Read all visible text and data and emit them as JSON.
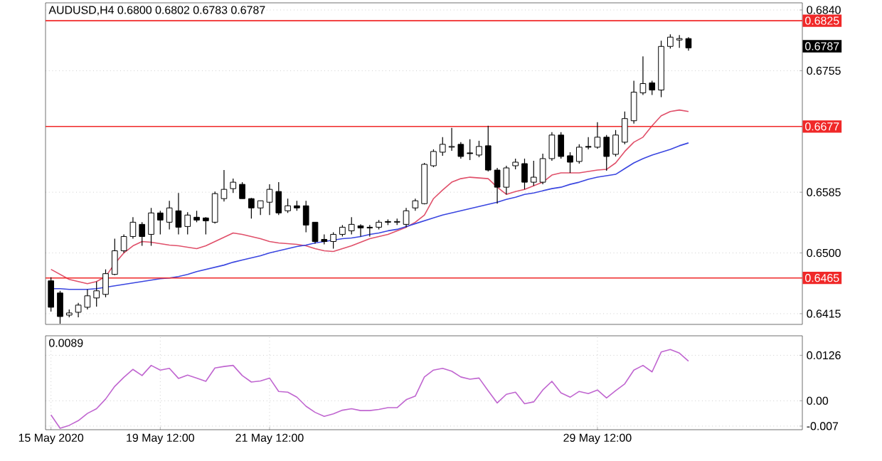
{
  "chart_data": [
    {
      "type": "candlestick",
      "title": "AUDUSD,H4  0.6800 0.6802 0.6783 0.6787",
      "categories": [
        null,
        null,
        null,
        null,
        null,
        null,
        null,
        null,
        null,
        null,
        null,
        null,
        null,
        null,
        null,
        null,
        null,
        null,
        null,
        null,
        null,
        null,
        null,
        null,
        null,
        null,
        null,
        null,
        null,
        null,
        null,
        null,
        null,
        null,
        null,
        null,
        null,
        null,
        null,
        null,
        null,
        null,
        null,
        null,
        null,
        null,
        null,
        null,
        null,
        null,
        null,
        null,
        null,
        null,
        null,
        null,
        null,
        null,
        null,
        null,
        null,
        null,
        null,
        null,
        null,
        null,
        null,
        null,
        null,
        null,
        null
      ],
      "ohlc": [
        [
          0.6461,
          0.6466,
          0.6418,
          0.6424
        ],
        [
          0.6444,
          0.6447,
          0.6401,
          0.6411
        ],
        [
          0.6413,
          0.6421,
          0.641,
          0.6416
        ],
        [
          0.6417,
          0.643,
          0.641,
          0.6427
        ],
        [
          0.6424,
          0.6449,
          0.6421,
          0.644
        ],
        [
          0.6437,
          0.646,
          0.6425,
          0.6447
        ],
        [
          0.6442,
          0.6477,
          0.6438,
          0.6471
        ],
        [
          0.647,
          0.652,
          0.6469,
          0.6503
        ],
        [
          0.6503,
          0.6526,
          0.65,
          0.6523
        ],
        [
          0.6523,
          0.655,
          0.652,
          0.6543
        ],
        [
          0.654,
          0.6543,
          0.651,
          0.6523
        ],
        [
          0.6526,
          0.6563,
          0.651,
          0.6556
        ],
        [
          0.6556,
          0.6559,
          0.6526,
          0.6546
        ],
        [
          0.6543,
          0.6573,
          0.6533,
          0.6563
        ],
        [
          0.6559,
          0.6584,
          0.6526,
          0.6536
        ],
        [
          0.6537,
          0.6557,
          0.6526,
          0.6553
        ],
        [
          0.655,
          0.6559,
          0.6543,
          0.6546
        ],
        [
          0.6549,
          0.655,
          0.6526,
          0.6545
        ],
        [
          0.6543,
          0.6586,
          0.6541,
          0.6583
        ],
        [
          0.6576,
          0.6616,
          0.6572,
          0.6589
        ],
        [
          0.659,
          0.6604,
          0.6584,
          0.6599
        ],
        [
          0.6596,
          0.6599,
          0.6576,
          0.6576
        ],
        [
          0.6576,
          0.6577,
          0.6548,
          0.6563
        ],
        [
          0.6563,
          0.6573,
          0.6553,
          0.6573
        ],
        [
          0.6571,
          0.6596,
          0.6553,
          0.6589
        ],
        [
          0.6586,
          0.6599,
          0.6553,
          0.6556
        ],
        [
          0.6559,
          0.6576,
          0.6556,
          0.6566
        ],
        [
          0.6566,
          0.6573,
          0.6559,
          0.6563
        ],
        [
          0.6566,
          0.6573,
          0.6529,
          0.6539
        ],
        [
          0.6543,
          0.6543,
          0.6513,
          0.6516
        ],
        [
          0.6519,
          0.6526,
          0.6512,
          0.6516
        ],
        [
          0.6516,
          0.6529,
          0.6506,
          0.6526
        ],
        [
          0.6526,
          0.6539,
          0.6523,
          0.6536
        ],
        [
          0.6531,
          0.655,
          0.6526,
          0.654
        ],
        [
          0.6538,
          0.654,
          0.6523,
          0.6535
        ],
        [
          0.6536,
          0.6539,
          0.6523,
          0.6535
        ],
        [
          0.6536,
          0.6546,
          0.6533,
          0.6543
        ],
        [
          0.6544,
          0.6547,
          0.6539,
          0.6543
        ],
        [
          0.6543,
          0.6548,
          0.6539,
          0.6544
        ],
        [
          0.654,
          0.6563,
          0.6536,
          0.6559
        ],
        [
          0.6563,
          0.6576,
          0.6559,
          0.6573
        ],
        [
          0.6569,
          0.6626,
          0.6568,
          0.6624
        ],
        [
          0.6622,
          0.6645,
          0.662,
          0.6642
        ],
        [
          0.6641,
          0.6662,
          0.6636,
          0.6652
        ],
        [
          0.6648,
          0.6675,
          0.6643,
          0.6649
        ],
        [
          0.6652,
          0.6655,
          0.6632,
          0.6635
        ],
        [
          0.664,
          0.6659,
          0.663,
          0.6639
        ],
        [
          0.6637,
          0.6657,
          0.6634,
          0.6649
        ],
        [
          0.665,
          0.6678,
          0.6614,
          0.6616
        ],
        [
          0.6616,
          0.6619,
          0.6569,
          0.6592
        ],
        [
          0.6592,
          0.6622,
          0.6582,
          0.6619
        ],
        [
          0.6622,
          0.6632,
          0.6617,
          0.6627
        ],
        [
          0.6625,
          0.6632,
          0.6589,
          0.6599
        ],
        [
          0.6599,
          0.6629,
          0.6594,
          0.6606
        ],
        [
          0.6599,
          0.6639,
          0.6596,
          0.6632
        ],
        [
          0.6632,
          0.6669,
          0.6629,
          0.6665
        ],
        [
          0.6665,
          0.6669,
          0.6632,
          0.6635
        ],
        [
          0.6636,
          0.6641,
          0.6612,
          0.6627
        ],
        [
          0.6628,
          0.6652,
          0.6625,
          0.6648
        ],
        [
          0.6649,
          0.6662,
          0.6645,
          0.6648
        ],
        [
          0.6648,
          0.6683,
          0.6646,
          0.6662
        ],
        [
          0.6662,
          0.6665,
          0.6615,
          0.6635
        ],
        [
          0.6638,
          0.6672,
          0.6635,
          0.6665
        ],
        [
          0.6655,
          0.6698,
          0.6652,
          0.6688
        ],
        [
          0.6685,
          0.6741,
          0.6681,
          0.6725
        ],
        [
          0.6724,
          0.6775,
          0.6721,
          0.6737
        ],
        [
          0.6738,
          0.6741,
          0.6721,
          0.6728
        ],
        [
          0.6728,
          0.6797,
          0.6718,
          0.6789
        ],
        [
          0.6789,
          0.6806,
          0.6786,
          0.6802
        ],
        [
          0.6798,
          0.6805,
          0.6787,
          0.68
        ],
        [
          0.68,
          0.6802,
          0.6783,
          0.6787
        ]
      ],
      "series": [
        {
          "type": "line",
          "color": "#e0506a",
          "values": [
            0.6477,
            0.647,
            0.6463,
            0.646,
            0.6457,
            0.646,
            0.6467,
            0.6485,
            0.65,
            0.651,
            0.6516,
            0.6515,
            0.6513,
            0.6511,
            0.651,
            0.6508,
            0.6506,
            0.651,
            0.6516,
            0.6522,
            0.6528,
            0.6526,
            0.6523,
            0.652,
            0.6516,
            0.6514,
            0.6513,
            0.6512,
            0.651,
            0.6506,
            0.6503,
            0.6502,
            0.6506,
            0.651,
            0.6515,
            0.652,
            0.6523,
            0.6526,
            0.6531,
            0.6536,
            0.6543,
            0.6553,
            0.6576,
            0.6588,
            0.6599,
            0.6604,
            0.6606,
            0.6605,
            0.6604,
            0.6592,
            0.6582,
            0.6586,
            0.6589,
            0.6594,
            0.6599,
            0.6609,
            0.6612,
            0.6612,
            0.6612,
            0.6614,
            0.6616,
            0.6617,
            0.6626,
            0.6642,
            0.6655,
            0.6662,
            0.6678,
            0.6692,
            0.6698,
            0.67,
            0.6698
          ]
        },
        {
          "type": "line",
          "color": "#3a46e0",
          "values": [
            0.645,
            0.645,
            0.6449,
            0.6449,
            0.6449,
            0.645,
            0.6452,
            0.6454,
            0.6456,
            0.6458,
            0.646,
            0.6462,
            0.6464,
            0.6465,
            0.6467,
            0.647,
            0.6474,
            0.6477,
            0.648,
            0.6483,
            0.6487,
            0.649,
            0.6493,
            0.6496,
            0.65,
            0.6503,
            0.6506,
            0.6509,
            0.6511,
            0.6514,
            0.6516,
            0.6518,
            0.652,
            0.6521,
            0.6523,
            0.6526,
            0.6528,
            0.6531,
            0.6533,
            0.6537,
            0.6541,
            0.6545,
            0.6549,
            0.6553,
            0.6556,
            0.6559,
            0.6562,
            0.6565,
            0.6568,
            0.6571,
            0.6575,
            0.6578,
            0.6582,
            0.6584,
            0.6587,
            0.659,
            0.6592,
            0.6596,
            0.6599,
            0.6603,
            0.6606,
            0.6608,
            0.661,
            0.6618,
            0.6626,
            0.6632,
            0.6637,
            0.6641,
            0.6645,
            0.665,
            0.6654
          ]
        }
      ],
      "ref_lines": [
        {
          "axis": "y",
          "value": 0.6825,
          "label": "0.6825",
          "color": "#f02828"
        },
        {
          "axis": "y",
          "value": 0.6677,
          "label": "0.6677",
          "color": "#f02828"
        },
        {
          "axis": "y",
          "value": 0.6465,
          "label": "0.6465",
          "color": "#f02828"
        }
      ],
      "annotations": [
        "0.6787"
      ],
      "ylim": [
        0.64,
        0.685
      ],
      "yticks": [
        {
          "value": 0.684,
          "label": "0.6840"
        },
        {
          "value": 0.6755,
          "label": "0.6755"
        },
        {
          "value": 0.6585,
          "label": "0.6585"
        },
        {
          "value": 0.65,
          "label": "0.6500"
        },
        {
          "value": 0.6415,
          "label": "0.6415"
        }
      ],
      "grid": "y"
    },
    {
      "type": "line",
      "categories": [
        "15 May 2020",
        null,
        null,
        null,
        null,
        null,
        null,
        null,
        null,
        null,
        null,
        null,
        "19 May 12:00",
        null,
        null,
        null,
        null,
        null,
        null,
        null,
        null,
        null,
        null,
        null,
        "21 May 12:00",
        null,
        null,
        null,
        null,
        null,
        null,
        null,
        null,
        null,
        null,
        null,
        null,
        null,
        null,
        null,
        null,
        null,
        null,
        null,
        null,
        null,
        null,
        null,
        null,
        null,
        null,
        null,
        null,
        null,
        null,
        null,
        null,
        null,
        null,
        null,
        "29 May 12:00",
        null,
        null,
        null,
        null,
        null,
        null,
        null,
        null,
        null,
        null
      ],
      "series": [
        {
          "color": "#c066d0",
          "values": [
            -0.0039,
            -0.0076,
            -0.0068,
            -0.0055,
            -0.0035,
            -0.0022,
            0.0005,
            0.004,
            0.0065,
            0.0087,
            0.007,
            0.0098,
            0.0085,
            0.009,
            0.0062,
            0.0071,
            0.0063,
            0.0054,
            0.0091,
            0.0095,
            0.0098,
            0.007,
            0.0052,
            0.0055,
            0.0063,
            0.0026,
            0.0024,
            0.001,
            -0.0015,
            -0.0032,
            -0.0043,
            -0.0036,
            -0.0026,
            -0.0022,
            -0.0027,
            -0.0027,
            -0.0024,
            -0.0019,
            -0.0019,
            0.0003,
            0.0013,
            0.0066,
            0.0085,
            0.009,
            0.0082,
            0.0066,
            0.006,
            0.0063,
            0.0028,
            -0.0006,
            0.0018,
            0.0024,
            -0.0008,
            -0.0003,
            0.003,
            0.0054,
            0.0022,
            0.001,
            0.0026,
            0.002,
            0.003,
            0.0008,
            0.0028,
            0.0047,
            0.0085,
            0.0098,
            0.008,
            0.0135,
            0.0142,
            0.0132,
            0.011
          ]
        }
      ],
      "annotations": [
        "0.0089"
      ],
      "ylim": [
        -0.008,
        0.018
      ],
      "yticks": [
        {
          "value": 0.0126,
          "label": "0.0126"
        },
        {
          "value": 0,
          "label": "0.00"
        },
        {
          "value": -0.007,
          "label": "-0.007"
        }
      ],
      "grid": true
    }
  ]
}
